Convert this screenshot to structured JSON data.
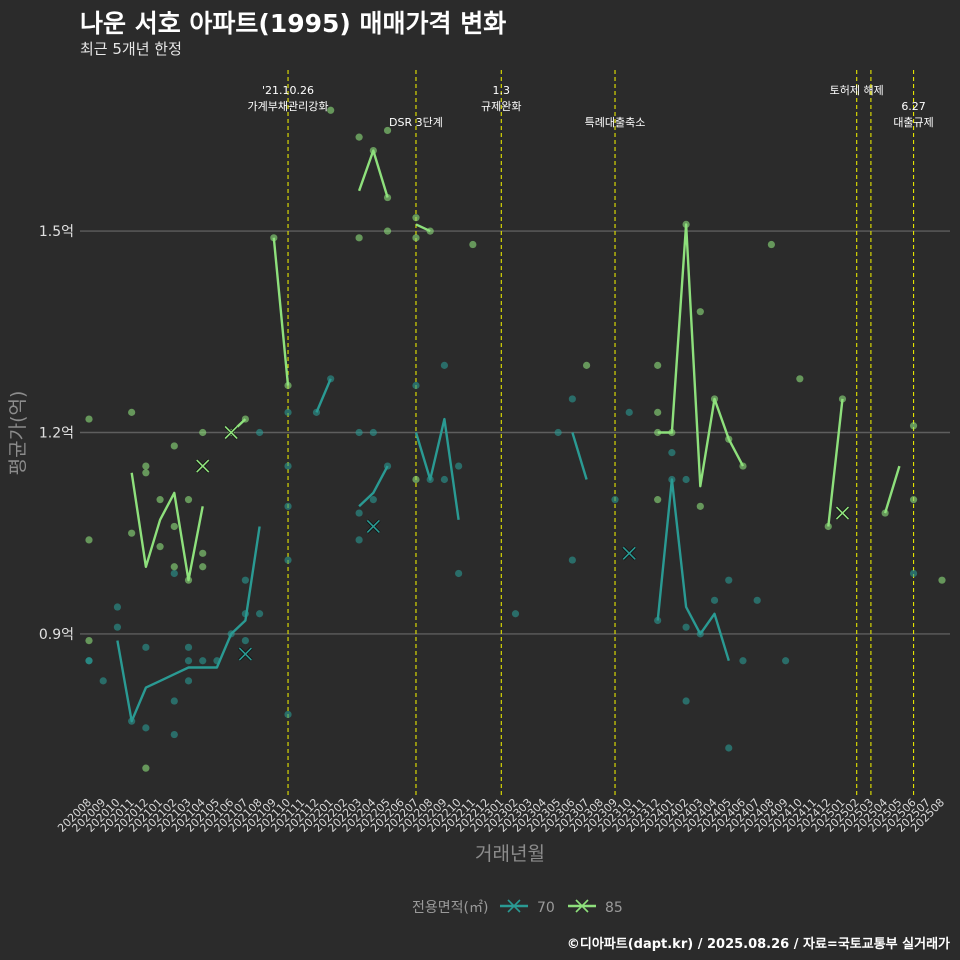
{
  "chart_data": {
    "type": "line",
    "title": "나운 서호 아파트(1995) 매매가격 변화",
    "subtitle": "최근 5개년 한정",
    "xlabel": "거래년월",
    "ylabel": "평균가(억)",
    "credit": "©디아파트(dapt.kr) / 2025.08.26 / 자료=국토교통부 실거래가",
    "categories": [
      "202008",
      "202009",
      "202010",
      "202011",
      "202012",
      "202101",
      "202102",
      "202103",
      "202104",
      "202105",
      "202106",
      "202107",
      "202108",
      "202109",
      "202110",
      "202111",
      "202112",
      "202201",
      "202202",
      "202203",
      "202204",
      "202205",
      "202206",
      "202207",
      "202208",
      "202209",
      "202210",
      "202211",
      "202212",
      "202301",
      "202302",
      "202303",
      "202304",
      "202305",
      "202306",
      "202307",
      "202308",
      "202309",
      "202310",
      "202311",
      "202312",
      "202401",
      "202402",
      "202403",
      "202404",
      "202405",
      "202406",
      "202407",
      "202408",
      "202409",
      "202410",
      "202411",
      "202412",
      "202501",
      "202502",
      "202503",
      "202504",
      "202505",
      "202506",
      "202507",
      "202508"
    ],
    "ylim": [
      0.66,
      1.74
    ],
    "yticks": [
      {
        "v": 0.9,
        "label": "0.9억"
      },
      {
        "v": 1.2,
        "label": "1.2억"
      },
      {
        "v": 1.5,
        "label": "1.5억"
      }
    ],
    "grid": "horizontal",
    "legend": {
      "title": "전용면적(㎡)",
      "position": "bottom"
    },
    "series": [
      {
        "name": "70",
        "color": "#2a9a93",
        "line": [
          [
            null,
            null,
            0.89,
            0.77,
            0.82,
            0.83,
            0.84,
            0.85,
            0.85,
            0.85,
            0.9,
            0.92,
            1.06,
            null,
            1.05
          ],
          [
            null,
            null,
            null,
            null,
            null,
            null,
            null,
            null,
            null,
            null,
            null,
            null,
            null,
            null,
            null,
            null,
            1.23,
            1.28
          ],
          [
            null,
            null,
            null,
            null,
            null,
            null,
            null,
            null,
            null,
            null,
            null,
            null,
            null,
            null,
            null,
            null,
            null,
            null,
            null,
            1.09,
            1.11,
            1.15
          ],
          [
            null,
            null,
            null,
            null,
            null,
            null,
            null,
            null,
            null,
            null,
            null,
            null,
            null,
            null,
            null,
            null,
            null,
            null,
            null,
            null,
            null,
            null,
            null,
            1.2,
            1.13,
            1.22,
            1.07
          ],
          [
            null,
            null,
            null,
            null,
            null,
            null,
            null,
            null,
            null,
            null,
            null,
            null,
            null,
            null,
            null,
            null,
            null,
            null,
            null,
            null,
            null,
            null,
            null,
            null,
            null,
            null,
            null,
            null,
            null,
            null,
            null,
            null,
            null,
            null,
            1.2,
            1.13
          ],
          [
            null,
            null,
            null,
            null,
            null,
            null,
            null,
            null,
            null,
            null,
            null,
            null,
            null,
            null,
            null,
            null,
            null,
            null,
            null,
            null,
            null,
            null,
            null,
            null,
            null,
            null,
            null,
            null,
            null,
            null,
            null,
            null,
            null,
            null,
            null,
            null,
            null,
            null,
            null,
            null,
            0.92,
            1.13,
            0.94,
            0.9,
            0.93,
            0.86,
            null,
            0.95,
            null,
            0.86
          ]
        ],
        "points": [
          [
            0,
            0.86
          ],
          [
            0,
            0.86
          ],
          [
            1,
            0.83
          ],
          [
            2,
            0.94
          ],
          [
            2,
            0.91
          ],
          [
            3,
            0.77
          ],
          [
            4,
            0.76
          ],
          [
            4,
            0.88
          ],
          [
            6,
            0.8
          ],
          [
            6,
            0.75
          ],
          [
            6,
            0.99
          ],
          [
            7,
            0.88
          ],
          [
            7,
            0.86
          ],
          [
            7,
            0.83
          ],
          [
            8,
            0.86
          ],
          [
            9,
            0.86
          ],
          [
            10,
            0.9
          ],
          [
            11,
            0.98
          ],
          [
            11,
            0.93
          ],
          [
            11,
            0.89
          ],
          [
            12,
            0.93
          ],
          [
            12,
            1.2
          ],
          [
            14,
            1.23
          ],
          [
            14,
            1.15
          ],
          [
            14,
            1.09
          ],
          [
            14,
            1.01
          ],
          [
            14,
            0.78
          ],
          [
            16,
            1.23
          ],
          [
            17,
            1.28
          ],
          [
            19,
            1.2
          ],
          [
            19,
            1.08
          ],
          [
            19,
            1.04
          ],
          [
            20,
            1.2
          ],
          [
            20,
            1.1
          ],
          [
            21,
            1.15
          ],
          [
            23,
            1.27
          ],
          [
            24,
            1.13
          ],
          [
            25,
            1.3
          ],
          [
            25,
            1.13
          ],
          [
            26,
            1.15
          ],
          [
            26,
            0.99
          ],
          [
            30,
            0.93
          ],
          [
            33,
            1.2
          ],
          [
            34,
            1.25
          ],
          [
            34,
            1.01
          ],
          [
            37,
            1.1
          ],
          [
            38,
            1.23
          ],
          [
            40,
            0.92
          ],
          [
            41,
            1.17
          ],
          [
            41,
            1.13
          ],
          [
            42,
            0.91
          ],
          [
            42,
            0.8
          ],
          [
            42,
            1.13
          ],
          [
            43,
            0.9
          ],
          [
            44,
            0.95
          ],
          [
            45,
            0.98
          ],
          [
            45,
            0.73
          ],
          [
            46,
            0.86
          ],
          [
            47,
            0.95
          ],
          [
            49,
            0.86
          ],
          [
            58,
            0.99
          ]
        ],
        "crosses": [
          [
            11,
            0.87
          ],
          [
            20,
            1.06
          ],
          [
            38,
            1.02
          ]
        ]
      },
      {
        "name": "85",
        "color": "#8ee07c",
        "line": [
          [
            1.05,
            null,
            null,
            1.14,
            1.0,
            1.07,
            1.11,
            0.98,
            1.09,
            null,
            1.2,
            1.22,
            null,
            1.49,
            1.27,
            null,
            null,
            1.68,
            null,
            1.56,
            1.62,
            1.55,
            null,
            1.51,
            1.5,
            null,
            null,
            1.48,
            null,
            null,
            null,
            null,
            null,
            null,
            null,
            1.3,
            null,
            null,
            null,
            null,
            1.2,
            1.2,
            1.51,
            1.12,
            1.25,
            1.19,
            1.15,
            null,
            1.48,
            null,
            1.28,
            null,
            1.06,
            1.25,
            null,
            null,
            1.08,
            1.15,
            null,
            null,
            0.98
          ]
        ],
        "points": [
          [
            0,
            1.22
          ],
          [
            0,
            1.04
          ],
          [
            0,
            0.89
          ],
          [
            3,
            1.23
          ],
          [
            3,
            1.05
          ],
          [
            4,
            1.15
          ],
          [
            4,
            1.14
          ],
          [
            4,
            0.7
          ],
          [
            5,
            1.1
          ],
          [
            5,
            1.03
          ],
          [
            6,
            1.18
          ],
          [
            6,
            1.06
          ],
          [
            6,
            1.0
          ],
          [
            7,
            1.1
          ],
          [
            7,
            0.98
          ],
          [
            8,
            1.2
          ],
          [
            8,
            1.02
          ],
          [
            8,
            1.0
          ],
          [
            10,
            1.2
          ],
          [
            11,
            1.22
          ],
          [
            13,
            1.49
          ],
          [
            14,
            1.27
          ],
          [
            17,
            1.68
          ],
          [
            19,
            1.64
          ],
          [
            19,
            1.49
          ],
          [
            20,
            1.62
          ],
          [
            21,
            1.65
          ],
          [
            21,
            1.55
          ],
          [
            21,
            1.5
          ],
          [
            23,
            1.52
          ],
          [
            23,
            1.49
          ],
          [
            23,
            1.13
          ],
          [
            24,
            1.5
          ],
          [
            27,
            1.48
          ],
          [
            35,
            1.3
          ],
          [
            40,
            1.3
          ],
          [
            40,
            1.23
          ],
          [
            40,
            1.2
          ],
          [
            40,
            1.1
          ],
          [
            41,
            1.2
          ],
          [
            42,
            1.51
          ],
          [
            43,
            1.38
          ],
          [
            43,
            1.09
          ],
          [
            44,
            1.25
          ],
          [
            45,
            1.19
          ],
          [
            46,
            1.15
          ],
          [
            48,
            1.48
          ],
          [
            50,
            1.28
          ],
          [
            52,
            1.06
          ],
          [
            53,
            1.25
          ],
          [
            56,
            1.08
          ],
          [
            58,
            1.21
          ],
          [
            58,
            1.1
          ],
          [
            60,
            0.98
          ]
        ],
        "crosses": [
          [
            8,
            1.15
          ],
          [
            10,
            1.2
          ],
          [
            53,
            1.08
          ]
        ]
      }
    ],
    "events": [
      {
        "x": 14.0,
        "lines": [
          "'21.10.26",
          "가계부채관리강화"
        ],
        "level": 0
      },
      {
        "x": 23.0,
        "lines": [
          "DSR 3단계"
        ],
        "level": 1
      },
      {
        "x": 29.0,
        "lines": [
          "1.3",
          "규제완화"
        ],
        "level": 0
      },
      {
        "x": 37.0,
        "lines": [
          "특례대출축소"
        ],
        "level": 1
      },
      {
        "x": 54.0,
        "lines": [
          "토허제 해제"
        ],
        "level": 0
      },
      {
        "x": 55.0,
        "lines": [],
        "level": 0
      },
      {
        "x": 58.0,
        "lines": [
          "6.27",
          "대출규제"
        ],
        "level": 1
      }
    ]
  }
}
